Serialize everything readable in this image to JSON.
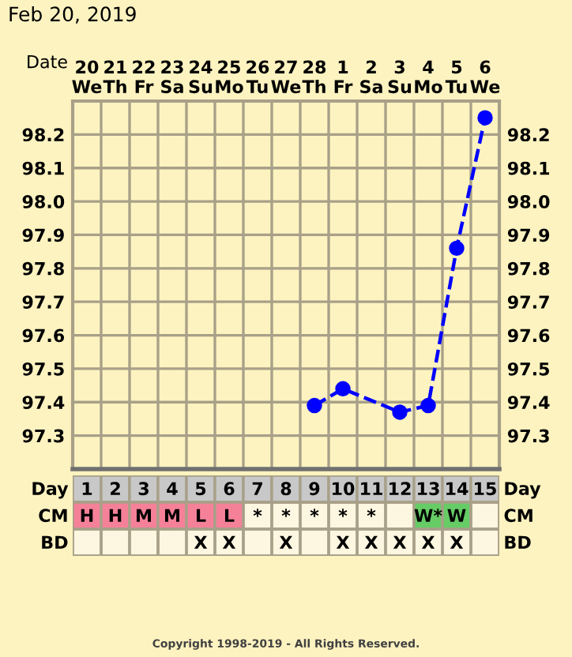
{
  "chart_data": [
    {
      "type": "line",
      "title": "Feb 20, 2019",
      "xlabel": "Date",
      "categories": [
        "20\nWe",
        "21\nTh",
        "22\nFr",
        "23\nSa",
        "24\nSu",
        "25\nMo",
        "26\nTu",
        "27\nWe",
        "28\nTh",
        "1\nFr",
        "2\nSa",
        "3\nSu",
        "4\nMo",
        "5\nTu",
        "6\nWe"
      ],
      "series": [
        {
          "color": "#0000ff",
          "values": [
            null,
            null,
            null,
            null,
            null,
            null,
            null,
            null,
            97.39,
            97.44,
            null,
            97.37,
            97.39,
            97.86,
            98.25
          ]
        }
      ],
      "ylim": [
        97.2,
        98.3
      ],
      "yticks": [
        97.3,
        97.4,
        97.5,
        97.6,
        97.7,
        97.8,
        97.9,
        {
          "value": 98.0,
          "label": "98.0"
        },
        98.1,
        98.2
      ],
      "y2lim": [
        97.2,
        98.3
      ],
      "y2ticks": [
        97.3,
        97.4,
        97.5,
        97.6,
        97.7,
        97.8,
        97.9,
        {
          "value": 98.0,
          "label": "98.0"
        },
        98.1,
        98.2
      ],
      "grid": true,
      "marker": "circle",
      "line_style": "dashed"
    },
    {
      "type": "heatmap",
      "xlabel": "Day",
      "color": "#c8c8c8",
      "categories": [
        "1",
        "2",
        "3",
        "4",
        "5",
        "6",
        "7",
        "8",
        "9",
        "10",
        "11",
        "12",
        "13",
        "14",
        "15"
      ],
      "y_categories": [
        "CM",
        "BD"
      ],
      "y2_categories": [
        "CM",
        "BD"
      ],
      "cells": [
        [
          null,
          null,
          null,
          null,
          null,
          null,
          null,
          null,
          null,
          null,
          null,
          null,
          null,
          null,
          null
        ],
        [
          null,
          null,
          null,
          null,
          null,
          null,
          null,
          null,
          null,
          null,
          null,
          null,
          null,
          null,
          null
        ]
      ],
      "cell_labels": [
        [
          "H",
          "H",
          "M",
          "M",
          "L",
          "L",
          "*",
          "*",
          "*",
          "*",
          "*",
          null,
          "W*",
          "W",
          null
        ],
        [
          null,
          null,
          null,
          null,
          "X",
          "X",
          null,
          "X",
          null,
          "X",
          "X",
          "X",
          "X",
          "X",
          null
        ]
      ],
      "colors": [
        [
          "#f58199",
          "#f58199",
          "#f58199",
          "#f58199",
          "#f58199",
          "#f58199",
          null,
          null,
          null,
          null,
          null,
          null,
          "#66cc66",
          "#66cc66",
          null
        ],
        [
          null,
          null,
          null,
          null,
          null,
          null,
          null,
          null,
          null,
          null,
          null,
          null,
          null,
          null,
          null
        ]
      ],
      "annotations": [
        "Copyright 1998-2019 - All Rights Reserved."
      ]
    }
  ]
}
